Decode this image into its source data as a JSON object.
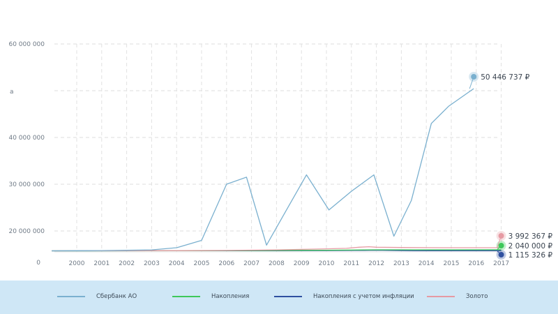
{
  "chart_data": {
    "type": "line",
    "title": "",
    "xlabel": "",
    "ylabel": "",
    "y_axis_label": "а",
    "x": [
      1999,
      2000,
      2001,
      2002,
      2003,
      2004,
      2005,
      2006,
      2007,
      2008,
      2009,
      2010,
      2011,
      2012,
      2013,
      2014,
      2015,
      2016,
      2017
    ],
    "x_ticks": [
      "2000",
      "2001",
      "2002",
      "2003",
      "2004",
      "2005",
      "2006",
      "2007",
      "2008",
      "2009",
      "2010",
      "2011",
      "2012",
      "2013",
      "2014",
      "2015",
      "2016",
      "2017"
    ],
    "y_ticks": [
      {
        "value": 0,
        "label": "0"
      },
      {
        "value": 20000000,
        "label": "20 000 000"
      },
      {
        "value": 30000000,
        "label": "30 000 000"
      },
      {
        "value": 40000000,
        "label": "40 000 000"
      },
      {
        "value": 60000000,
        "label": "60 000 000"
      }
    ],
    "ylim": [
      0,
      60000000
    ],
    "grid": true,
    "legend_position": "bottom",
    "series": [
      {
        "name": "Сбербанк АО",
        "color": "#7ab0cf",
        "x": [
          1999,
          2000,
          2001,
          2002,
          2003,
          2004,
          2005,
          2006,
          2006.8,
          2007.6,
          2008.4,
          2009.2,
          2010.1,
          2011,
          2011.9,
          2012.7,
          2013.4,
          2014.2,
          2014.9,
          2015.9
        ],
        "values": [
          1000000,
          1150000,
          1300000,
          1550000,
          1900000,
          4000000,
          11000000,
          30000000,
          31500000,
          6500000,
          24500000,
          32000000,
          24500000,
          28500000,
          32000000,
          15000000,
          26500000,
          43000000,
          46700000,
          50446737
        ],
        "end_label": "50 446 737 ₽"
      },
      {
        "name": "Накопления",
        "color": "#3ec85a",
        "x": [
          1999,
          2004,
          2010,
          2011.5,
          2012,
          2013,
          2015,
          2017
        ],
        "values": [
          1000000,
          1100000,
          1600000,
          1900000,
          2000000,
          2000000,
          2020000,
          2040000
        ],
        "end_label": "2 040 000 ₽"
      },
      {
        "name": "Накопления с учетом инфляции",
        "color": "#2f50a0",
        "x": [
          1999,
          2003,
          2008,
          2010,
          2011.5,
          2012,
          2013.5,
          2014.2,
          2016,
          2017
        ],
        "values": [
          1000000,
          1050000,
          1150000,
          1300000,
          1500000,
          1600000,
          1100000,
          1120000,
          1115000,
          1115326
        ],
        "end_label": "1 115 326 ₽"
      },
      {
        "name": "Золото",
        "color": "#e69aa3",
        "x": [
          1999,
          2004,
          2006,
          2008,
          2009,
          2010,
          2010.8,
          2011.3,
          2011.7,
          2012,
          2013,
          2014,
          2015,
          2017
        ],
        "values": [
          1000000,
          1200000,
          1400000,
          1900000,
          2400000,
          2900000,
          3400000,
          4500000,
          4900000,
          4500000,
          4200000,
          4050000,
          4000000,
          3992367
        ],
        "end_label": "3 992 367 ₽"
      }
    ]
  },
  "legend": {
    "items": [
      {
        "label": "Сбербанк АО",
        "color": "#7ab0cf"
      },
      {
        "label": "Накопления",
        "color": "#3ec85a"
      },
      {
        "label": "Накопления с учетом инфляции",
        "color": "#2f50a0"
      },
      {
        "label": "Золото",
        "color": "#e69aa3"
      }
    ]
  }
}
